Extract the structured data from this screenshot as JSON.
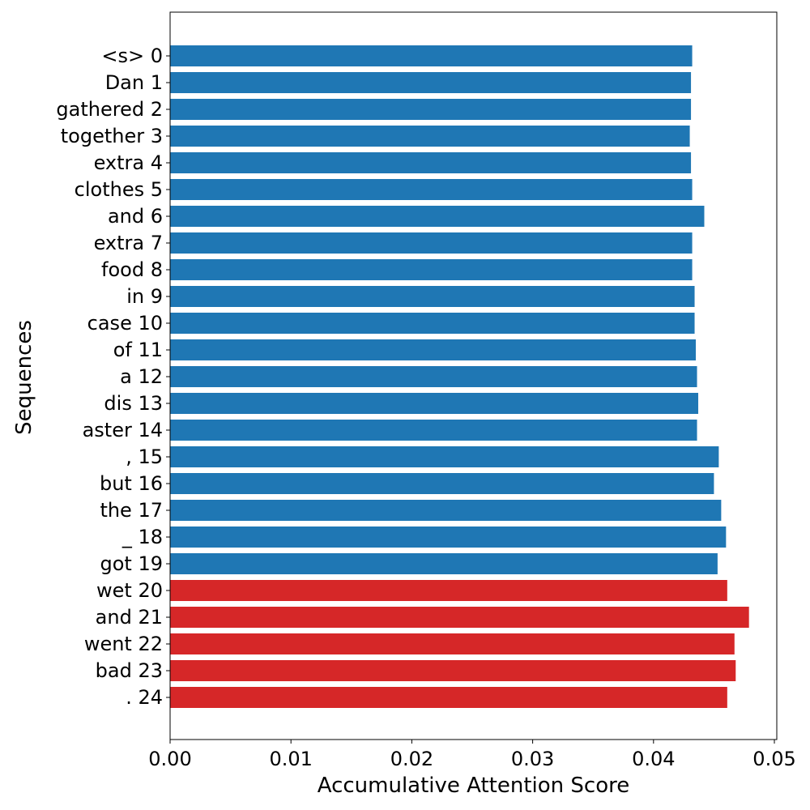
{
  "chart_data": {
    "type": "bar",
    "orientation": "horizontal",
    "title": "",
    "xlabel": "Accumulative Attention Score",
    "ylabel": "Sequences",
    "xlim": [
      0.0,
      0.0502
    ],
    "xticks": [
      0.0,
      0.01,
      0.02,
      0.03,
      0.04,
      0.05
    ],
    "xtick_labels": [
      "0.00",
      "0.01",
      "0.02",
      "0.03",
      "0.04",
      "0.05"
    ],
    "grid": false,
    "colors": {
      "default": "#1f77b4",
      "highlight": "#d62728"
    },
    "categories": [
      "<s> 0",
      "Dan 1",
      "gathered 2",
      "together 3",
      "extra 4",
      "clothes 5",
      "and 6",
      "extra 7",
      "food 8",
      "in 9",
      "case 10",
      "of 11",
      "a 12",
      "dis 13",
      "aster 14",
      ", 15",
      "but 16",
      "the 17",
      "_ 18",
      "got 19",
      "wet 20",
      "and 21",
      "went 22",
      "bad 23",
      ". 24"
    ],
    "values": [
      0.0432,
      0.0431,
      0.0431,
      0.043,
      0.0431,
      0.0432,
      0.0442,
      0.0432,
      0.0432,
      0.0434,
      0.0434,
      0.0435,
      0.0436,
      0.0437,
      0.0436,
      0.0454,
      0.045,
      0.0456,
      0.046,
      0.0453,
      0.0461,
      0.0479,
      0.0467,
      0.0468,
      0.0461
    ],
    "highlighted": [
      false,
      false,
      false,
      false,
      false,
      false,
      false,
      false,
      false,
      false,
      false,
      false,
      false,
      false,
      false,
      false,
      false,
      false,
      false,
      false,
      true,
      true,
      true,
      true,
      true
    ]
  }
}
